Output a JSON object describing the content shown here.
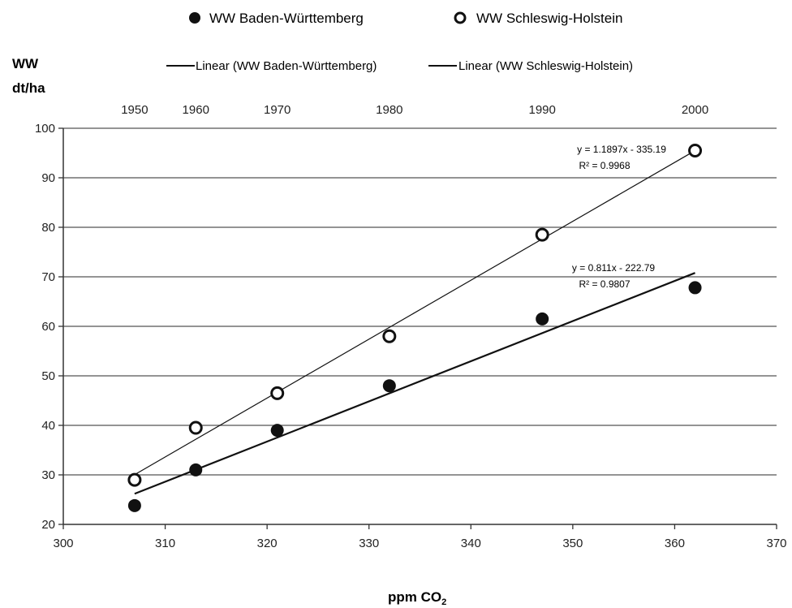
{
  "chart_data": {
    "type": "scatter",
    "y_label_line1": "WW",
    "y_label_line2": "dt/ha",
    "x_label": "ppm CO",
    "x_label_sub": "2",
    "xlim": [
      300,
      370
    ],
    "ylim": [
      20,
      100
    ],
    "x_ticks": [
      300,
      310,
      320,
      330,
      340,
      350,
      360,
      370
    ],
    "y_ticks": [
      20,
      30,
      40,
      50,
      60,
      70,
      80,
      90,
      100
    ],
    "grid": "horizontal",
    "top_axis": {
      "ticks": [
        {
          "x": 307,
          "label": "1950"
        },
        {
          "x": 313,
          "label": "1960"
        },
        {
          "x": 321,
          "label": "1970"
        },
        {
          "x": 332,
          "label": "1980"
        },
        {
          "x": 347,
          "label": "1990"
        },
        {
          "x": 362,
          "label": "2000"
        }
      ]
    },
    "legend": {
      "placement": "top",
      "markers": [
        "WW Baden-Württemberg",
        "WW Schleswig-Holstein"
      ],
      "lines": [
        "Linear (WW Baden-Württemberg)",
        "Linear (WW Schleswig-Holstein)"
      ]
    },
    "series": [
      {
        "name": "WW Baden-Württemberg",
        "marker": "filled-circle",
        "x": [
          307,
          313,
          321,
          332,
          347,
          362
        ],
        "y": [
          23.8,
          31,
          39,
          48,
          61.5,
          67.8
        ],
        "trend": {
          "slope": 0.811,
          "intercept": -222.79,
          "x_range": [
            307,
            362
          ],
          "equation": "y = 0.811x - 222.79",
          "r2": "R² = 0.9807",
          "stroke_width": 2.2
        }
      },
      {
        "name": "WW Schleswig-Holstein",
        "marker": "open-circle",
        "x": [
          307,
          313,
          321,
          332,
          347,
          362
        ],
        "y": [
          29,
          39.5,
          46.5,
          58,
          78.5,
          95.5
        ],
        "trend": {
          "slope": 1.1897,
          "intercept": -335.19,
          "x_range": [
            307,
            362
          ],
          "equation": "y = 1.1897x - 335.19",
          "r2": "R² = 0.9968",
          "stroke_width": 1.2
        }
      }
    ],
    "colors": {
      "axis": "#333333",
      "grid": "#555555",
      "marker": "#111111",
      "text": "#222222"
    }
  }
}
